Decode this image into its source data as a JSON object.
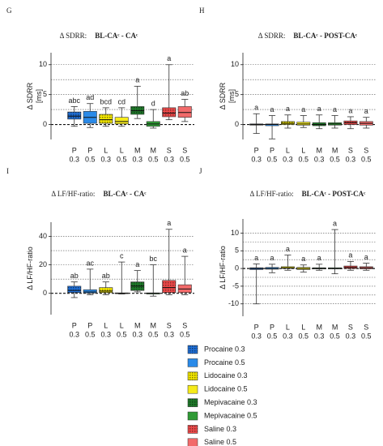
{
  "legend": [
    {
      "name": "Procaine 0.3",
      "color": "#1f6fd6",
      "pattern": true
    },
    {
      "name": "Procaine 0.5",
      "color": "#2a8ae8",
      "pattern": false
    },
    {
      "name": "Lidocaine 0.3",
      "color": "#f2e600",
      "pattern": true
    },
    {
      "name": "Lidocaine 0.5",
      "color": "#f5ea1a",
      "pattern": false
    },
    {
      "name": "Mepivacaine 0.3",
      "color": "#1f7a2a",
      "pattern": true
    },
    {
      "name": "Mepivacaine 0.5",
      "color": "#2f9a35",
      "pattern": false
    },
    {
      "name": "Saline 0.3",
      "color": "#ee4a4a",
      "pattern": true
    },
    {
      "name": "Saline 0.5",
      "color": "#f26a6a",
      "pattern": false
    }
  ],
  "chart_data": [
    {
      "type": "box",
      "panel": "G",
      "title": "Δ SDRR:",
      "comparison": "BL-CAᶜ - CAᶜ",
      "ylabel": "Δ SDRR",
      "ylabel_unit": "[ms]",
      "categories": [
        "P",
        "P",
        "L",
        "L",
        "M",
        "M",
        "S",
        "S"
      ],
      "category_sublabels": [
        "0.3",
        "0.5",
        "0.3",
        "0.5",
        "0.3",
        "0.5",
        "0.3",
        "0.5"
      ],
      "ylim": [
        -2.5,
        12
      ],
      "yticks": [
        0,
        5,
        10
      ],
      "grid_lines": [
        2.5,
        5,
        7.5,
        10
      ],
      "zero_line": true,
      "boxes": [
        {
          "min": -0.3,
          "q1": 0.9,
          "median": 1.4,
          "q3": 2.1,
          "max": 3.0
        },
        {
          "min": -0.5,
          "q1": 0.2,
          "median": 1.2,
          "q3": 2.2,
          "max": 3.5
        },
        {
          "min": -0.3,
          "q1": 0.2,
          "median": 0.8,
          "q3": 1.7,
          "max": 2.8
        },
        {
          "min": -0.3,
          "q1": 0.1,
          "median": 0.5,
          "q3": 1.2,
          "max": 2.8
        },
        {
          "min": 1.0,
          "q1": 1.7,
          "median": 2.3,
          "q3": 3.0,
          "max": 6.4
        },
        {
          "min": -0.6,
          "q1": -0.3,
          "median": 0.1,
          "q3": 0.5,
          "max": 2.5
        },
        {
          "min": 0.8,
          "q1": 1.3,
          "median": 1.9,
          "q3": 2.8,
          "max": 10.0
        },
        {
          "min": 0.5,
          "q1": 1.2,
          "median": 2.0,
          "q3": 3.0,
          "max": 4.2
        }
      ],
      "annotations": [
        "abc",
        "ad",
        "bcd",
        "cd",
        "a",
        "d",
        "a",
        "ab"
      ]
    },
    {
      "type": "box",
      "panel": "H",
      "title": "Δ SDRR:",
      "comparison": "BL-CAᶜ - POST-CAᶜ",
      "ylabel": "Δ SDRR",
      "ylabel_unit": "[ms]",
      "categories": [
        "P",
        "P",
        "L",
        "L",
        "M",
        "M",
        "S",
        "S"
      ],
      "category_sublabels": [
        "0.3",
        "0.5",
        "0.3",
        "0.5",
        "0.3",
        "0.5",
        "0.3",
        "0.5"
      ],
      "ylim": [
        -2.5,
        12
      ],
      "yticks": [
        0,
        5,
        10
      ],
      "grid_lines": [
        2.5,
        5,
        7.5,
        10
      ],
      "zero_line": true,
      "boxes": [
        {
          "min": -1.5,
          "q1": -0.1,
          "median": 0,
          "q3": 0.1,
          "max": 1.8
        },
        {
          "min": -2.4,
          "q1": -0.2,
          "median": 0,
          "q3": 0.1,
          "max": 1.5
        },
        {
          "min": -0.6,
          "q1": 0,
          "median": 0.2,
          "q3": 0.5,
          "max": 1.6
        },
        {
          "min": -0.5,
          "q1": -0.1,
          "median": 0.1,
          "q3": 0.4,
          "max": 1.5
        },
        {
          "min": -0.7,
          "q1": -0.2,
          "median": 0,
          "q3": 0.3,
          "max": 1.6
        },
        {
          "min": -0.6,
          "q1": -0.1,
          "median": 0.1,
          "q3": 0.3,
          "max": 1.5
        },
        {
          "min": -0.7,
          "q1": 0,
          "median": 0.3,
          "q3": 0.6,
          "max": 1.3
        },
        {
          "min": -0.6,
          "q1": -0.1,
          "median": 0.2,
          "q3": 0.5,
          "max": 1.2
        }
      ],
      "annotations": [
        "a",
        "a",
        "a",
        "a",
        "a",
        "a",
        "a",
        "a"
      ]
    },
    {
      "type": "box",
      "panel": "I",
      "title": "Δ LF/HF-ratio:",
      "comparison": "BL-CAᶜ - CAᶜ",
      "ylabel": "Δ LF/HF-ratio",
      "categories": [
        "P",
        "P",
        "L",
        "L",
        "M",
        "M",
        "S",
        "S"
      ],
      "category_sublabels": [
        "0.3",
        "0.5",
        "0.3",
        "0.5",
        "0.3",
        "0.5",
        "0.3",
        "0.5"
      ],
      "ylim": [
        -15,
        50
      ],
      "yticks": [
        0,
        20,
        40
      ],
      "grid_lines": [
        10,
        20,
        30,
        40
      ],
      "zero_line": true,
      "boxes": [
        {
          "min": -3,
          "q1": 0.5,
          "median": 2,
          "q3": 5,
          "max": 8
        },
        {
          "min": -1,
          "q1": 0.2,
          "median": 1,
          "q3": 2.5,
          "max": 17
        },
        {
          "min": -1,
          "q1": 0.5,
          "median": 1.5,
          "q3": 4,
          "max": 8
        },
        {
          "min": -0.5,
          "q1": -0.2,
          "median": 0,
          "q3": 0.3,
          "max": 22
        },
        {
          "min": 1,
          "q1": 2,
          "median": 5,
          "q3": 8,
          "max": 16
        },
        {
          "min": -2,
          "q1": -0.5,
          "median": 0,
          "q3": 0.3,
          "max": 20
        },
        {
          "min": -1,
          "q1": 0.5,
          "median": 4,
          "q3": 9,
          "max": 45
        },
        {
          "min": -1,
          "q1": 0.5,
          "median": 3,
          "q3": 6,
          "max": 26
        }
      ],
      "annotations": [
        "ab",
        "ac",
        "ab",
        "c",
        "a",
        "bc",
        "a",
        "a"
      ]
    },
    {
      "type": "box",
      "panel": "J",
      "title": "Δ LF/HF-ratio:",
      "comparison": "BL-CAᶜ - POST-CAᶜ",
      "ylabel": "Δ LF/HF-ratio",
      "categories": [
        "P",
        "P",
        "L",
        "L",
        "M",
        "M",
        "S",
        "S"
      ],
      "category_sublabels": [
        "0.3",
        "0.5",
        "0.3",
        "0.5",
        "0.3",
        "0.5",
        "0.3",
        "0.5"
      ],
      "ylim": [
        -13.5,
        14
      ],
      "yticks": [
        -10,
        -5,
        0,
        5,
        10
      ],
      "grid_lines": [
        -10,
        -7.5,
        -5,
        -2.5,
        2.5,
        5,
        7.5,
        10
      ],
      "zero_line": true,
      "boxes": [
        {
          "min": -10,
          "q1": -0.3,
          "median": 0,
          "q3": 0.2,
          "max": 1.3
        },
        {
          "min": -1.2,
          "q1": -0.2,
          "median": 0,
          "q3": 0.3,
          "max": 1.2
        },
        {
          "min": -0.5,
          "q1": 0,
          "median": 0.2,
          "q3": 0.5,
          "max": 3.8
        },
        {
          "min": -1,
          "q1": -0.3,
          "median": 0,
          "q3": 0.3,
          "max": 1
        },
        {
          "min": -0.5,
          "q1": -0.1,
          "median": 0,
          "q3": 0.2,
          "max": 1.2
        },
        {
          "min": -1.5,
          "q1": -0.1,
          "median": 0,
          "q3": 0.2,
          "max": 11
        },
        {
          "min": -0.5,
          "q1": 0,
          "median": 0.3,
          "q3": 0.7,
          "max": 2
        },
        {
          "min": -0.5,
          "q1": -0.1,
          "median": 0.2,
          "q3": 0.5,
          "max": 1.5
        }
      ],
      "annotations": [
        "a",
        "a",
        "a",
        "a",
        "a",
        "a",
        "a",
        "a"
      ]
    }
  ]
}
